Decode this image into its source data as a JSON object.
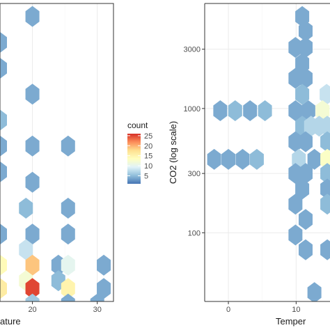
{
  "legend": {
    "title": "count",
    "ticks": [
      25,
      20,
      15,
      10,
      5
    ],
    "colormap": [
      "#4575b4",
      "#91bfdb",
      "#e0f3f8",
      "#ffffbf",
      "#fee090",
      "#fc8d59",
      "#d73027"
    ],
    "min": 1,
    "max": 26
  },
  "chart_data": [
    {
      "type": "hexbin",
      "xlabel": "ature",
      "ylabel": "",
      "x_ticks": [
        "20",
        "30"
      ],
      "x_tick_values": [
        20,
        30
      ],
      "xlim": [
        15,
        32.5
      ],
      "ylim": [
        0,
        11.5
      ],
      "grid": true,
      "cells": [
        {
          "x": 20,
          "y": 11,
          "count": 4
        },
        {
          "x": 15,
          "y": 10,
          "count": 4
        },
        {
          "x": 15,
          "y": 9,
          "count": 4
        },
        {
          "x": 20,
          "y": 8,
          "count": 4
        },
        {
          "x": 15,
          "y": 7,
          "count": 5
        },
        {
          "x": 15,
          "y": 6,
          "count": 4
        },
        {
          "x": 15,
          "y": 5,
          "count": 4
        },
        {
          "x": 20,
          "y": 6,
          "count": 4
        },
        {
          "x": 25.5,
          "y": 6,
          "count": 4
        },
        {
          "x": 20,
          "y": 4.6,
          "count": 4
        },
        {
          "x": 19,
          "y": 3.6,
          "count": 5
        },
        {
          "x": 25.5,
          "y": 3.6,
          "count": 4
        },
        {
          "x": 15,
          "y": 2.6,
          "count": 4
        },
        {
          "x": 20,
          "y": 2.6,
          "count": 4
        },
        {
          "x": 25.5,
          "y": 2.6,
          "count": 4
        },
        {
          "x": 19,
          "y": 2.0,
          "count": 8
        },
        {
          "x": 15,
          "y": 1.4,
          "count": 14
        },
        {
          "x": 20,
          "y": 1.4,
          "count": 19
        },
        {
          "x": 24,
          "y": 1.4,
          "count": 4
        },
        {
          "x": 25.5,
          "y": 1.4,
          "count": 10
        },
        {
          "x": 31,
          "y": 1.4,
          "count": 4
        },
        {
          "x": 19,
          "y": 0.8,
          "count": 12
        },
        {
          "x": 24,
          "y": 0.8,
          "count": 5
        },
        {
          "x": 15,
          "y": 0.5,
          "count": 16
        },
        {
          "x": 20,
          "y": 0.5,
          "count": 25
        },
        {
          "x": 25.5,
          "y": 0.5,
          "count": 15
        },
        {
          "x": 31,
          "y": 0.5,
          "count": 4
        },
        {
          "x": 20,
          "y": -0.1,
          "count": 6
        },
        {
          "x": 25.5,
          "y": -0.1,
          "count": 4
        },
        {
          "x": 30,
          "y": -0.1,
          "count": 4
        }
      ]
    },
    {
      "type": "hexbin",
      "xlabel": "Temper",
      "ylabel": "CO2 (log scale)",
      "x_ticks": [
        "0",
        "10"
      ],
      "x_tick_values": [
        0,
        10
      ],
      "y_ticks": [
        "100",
        "300",
        "1000",
        "3000"
      ],
      "y_tick_values": [
        100,
        300,
        1000,
        3000
      ],
      "y_scale": "log",
      "xlim": [
        -3.5,
        15
      ],
      "ylim": [
        28,
        7000
      ],
      "grid": true,
      "cells": [
        {
          "x": 10.9,
          "y": 5500,
          "count": 4
        },
        {
          "x": 11.4,
          "y": 4200,
          "count": 4
        },
        {
          "x": 9.9,
          "y": 3100,
          "count": 4
        },
        {
          "x": 11.4,
          "y": 3100,
          "count": 4
        },
        {
          "x": 10.9,
          "y": 2300,
          "count": 4
        },
        {
          "x": 9.9,
          "y": 1750,
          "count": 4
        },
        {
          "x": 11.4,
          "y": 1750,
          "count": 4
        },
        {
          "x": 10.9,
          "y": 1300,
          "count": 5
        },
        {
          "x": 14.5,
          "y": 1300,
          "count": 8
        },
        {
          "x": -1.2,
          "y": 960,
          "count": 4
        },
        {
          "x": 1.0,
          "y": 960,
          "count": 5
        },
        {
          "x": 3.2,
          "y": 960,
          "count": 4
        },
        {
          "x": 5.4,
          "y": 960,
          "count": 5
        },
        {
          "x": 9.9,
          "y": 960,
          "count": 4
        },
        {
          "x": 11.8,
          "y": 960,
          "count": 4
        },
        {
          "x": 13.9,
          "y": 960,
          "count": 12
        },
        {
          "x": 10.9,
          "y": 720,
          "count": 5
        },
        {
          "x": 12.2,
          "y": 720,
          "count": 7
        },
        {
          "x": 13.4,
          "y": 720,
          "count": 7
        },
        {
          "x": 14.6,
          "y": 720,
          "count": 7
        },
        {
          "x": 9.9,
          "y": 540,
          "count": 4
        },
        {
          "x": 11.4,
          "y": 540,
          "count": 4
        },
        {
          "x": 14.6,
          "y": 540,
          "count": 5
        },
        {
          "x": -2.1,
          "y": 390,
          "count": 4
        },
        {
          "x": 0.0,
          "y": 390,
          "count": 4
        },
        {
          "x": 2.1,
          "y": 390,
          "count": 4
        },
        {
          "x": 4.2,
          "y": 390,
          "count": 5
        },
        {
          "x": 10.4,
          "y": 390,
          "count": 7
        },
        {
          "x": 12.7,
          "y": 390,
          "count": 4
        },
        {
          "x": 14.6,
          "y": 390,
          "count": 13
        },
        {
          "x": 9.9,
          "y": 300,
          "count": 4
        },
        {
          "x": 11.4,
          "y": 300,
          "count": 4
        },
        {
          "x": 14.6,
          "y": 300,
          "count": 5
        },
        {
          "x": 10.9,
          "y": 225,
          "count": 4
        },
        {
          "x": 14.6,
          "y": 225,
          "count": 4
        },
        {
          "x": 9.9,
          "y": 170,
          "count": 4
        },
        {
          "x": 14.6,
          "y": 170,
          "count": 5
        },
        {
          "x": 11.4,
          "y": 128,
          "count": 4
        },
        {
          "x": 9.9,
          "y": 96,
          "count": 4
        },
        {
          "x": 11.4,
          "y": 73,
          "count": 4
        },
        {
          "x": 14.6,
          "y": 73,
          "count": 4
        },
        {
          "x": 12.7,
          "y": 33,
          "count": 4
        }
      ]
    }
  ]
}
